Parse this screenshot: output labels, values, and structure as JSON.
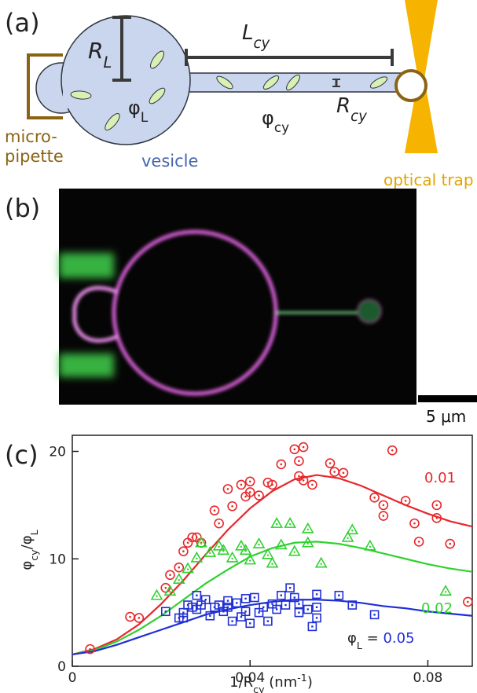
{
  "panel_a": {
    "label": "(a)",
    "r_l": [
      {
        "text": "R"
      },
      {
        "text": "L",
        "sub": true
      }
    ],
    "l_cy": [
      {
        "text": "L"
      },
      {
        "text": "cy",
        "sub": true
      }
    ],
    "phi_l": [
      {
        "text": "φ"
      },
      {
        "text": "L",
        "sub": true
      }
    ],
    "phi_cy": [
      {
        "text": "φ"
      },
      {
        "text": "cy",
        "sub": true
      }
    ],
    "r_cy": [
      {
        "text": "R"
      },
      {
        "text": "cy",
        "sub": true
      }
    ],
    "micropipette": [
      "micro-",
      "pipette"
    ],
    "vesicle": "vesicle",
    "optical_trap": "optical trap"
  },
  "panel_b": {
    "label": "(b)",
    "scale_bar": "5 μm"
  },
  "panel_c": {
    "label": "(c)"
  },
  "chart_data": {
    "type": "scatter",
    "xlabel": [
      {
        "text": "1/R"
      },
      {
        "text": "cy",
        "sub": true
      },
      {
        "text": " (nm"
      },
      {
        "text": "-1",
        "sup": true
      },
      {
        "text": ")"
      }
    ],
    "ylabel": [
      {
        "text": "φ"
      },
      {
        "text": "cy",
        "sub": true
      },
      {
        "text": "/φ"
      },
      {
        "text": "L",
        "sub": true
      }
    ],
    "xlim": [
      0,
      0.09
    ],
    "ylim": [
      0,
      21.5
    ],
    "xticks": [
      0,
      0.04,
      0.08
    ],
    "yticks": [
      0,
      10,
      20
    ],
    "label_prefix": [
      {
        "text": "φ"
      },
      {
        "text": "L",
        "sub": true
      },
      {
        "text": " = "
      }
    ],
    "series": [
      {
        "name": "0.01",
        "color": "#e8262a",
        "marker": "circle",
        "x": [
          0.004,
          0.013,
          0.015,
          0.021,
          0.022,
          0.024,
          0.025,
          0.026,
          0.027,
          0.028,
          0.029,
          0.032,
          0.033,
          0.035,
          0.036,
          0.038,
          0.039,
          0.04,
          0.04,
          0.042,
          0.044,
          0.045,
          0.047,
          0.05,
          0.051,
          0.052,
          0.052,
          0.051,
          0.054,
          0.058,
          0.059,
          0.061,
          0.068,
          0.07,
          0.07,
          0.072,
          0.075,
          0.077,
          0.078,
          0.082,
          0.082,
          0.085,
          0.089
        ],
        "values": [
          1.6,
          4.6,
          4.5,
          7.3,
          8.5,
          9.2,
          10.7,
          11.5,
          12.0,
          12.0,
          11.5,
          14.5,
          13.3,
          16.5,
          14.9,
          16.9,
          15.8,
          17.2,
          16.2,
          15.9,
          17.1,
          16.9,
          18.8,
          20.2,
          19.1,
          17.3,
          20.4,
          17.7,
          16.9,
          18.9,
          18.1,
          18.0,
          15.7,
          14.0,
          15.0,
          20.1,
          15.4,
          13.3,
          11.6,
          13.8,
          15.0,
          11.4,
          6.0
        ]
      },
      {
        "name": "0.02",
        "color": "#2fd12f",
        "marker": "triangle",
        "x": [
          0.019,
          0.022,
          0.024,
          0.026,
          0.028,
          0.029,
          0.031,
          0.033,
          0.034,
          0.036,
          0.038,
          0.039,
          0.04,
          0.042,
          0.044,
          0.045,
          0.046,
          0.047,
          0.049,
          0.05,
          0.053,
          0.053,
          0.056,
          0.062,
          0.063,
          0.067,
          0.084
        ],
        "values": [
          6.6,
          7.0,
          8.1,
          9.1,
          10.1,
          11.5,
          10.6,
          11.2,
          10.8,
          10.1,
          11.2,
          10.8,
          9.9,
          11.4,
          10.4,
          9.6,
          13.3,
          11.3,
          13.3,
          10.7,
          12.8,
          11.5,
          9.6,
          12.0,
          12.7,
          11.2,
          7.0
        ]
      },
      {
        "name": "0.05",
        "color": "#1f2fd6",
        "marker": "square",
        "x": [
          0.021,
          0.024,
          0.025,
          0.025,
          0.026,
          0.027,
          0.028,
          0.028,
          0.029,
          0.03,
          0.031,
          0.032,
          0.033,
          0.034,
          0.035,
          0.035,
          0.036,
          0.037,
          0.038,
          0.039,
          0.039,
          0.04,
          0.041,
          0.042,
          0.043,
          0.044,
          0.045,
          0.046,
          0.047,
          0.048,
          0.049,
          0.05,
          0.051,
          0.051,
          0.053,
          0.055,
          0.055,
          0.06,
          0.054,
          0.055,
          0.063,
          0.068
        ],
        "values": [
          5.1,
          4.5,
          5.0,
          4.5,
          5.7,
          5.5,
          6.6,
          5.3,
          5.7,
          6.2,
          4.7,
          5.5,
          5.7,
          5.1,
          6.1,
          5.5,
          4.2,
          5.9,
          4.6,
          6.3,
          5.1,
          4.0,
          6.4,
          5.0,
          5.5,
          4.2,
          5.8,
          5.3,
          6.6,
          5.7,
          7.3,
          6.4,
          5.0,
          5.8,
          5.3,
          5.5,
          6.7,
          6.6,
          3.7,
          4.5,
          5.7,
          4.8
        ]
      }
    ],
    "fits": [
      {
        "color": "#e8262a",
        "x": [
          0,
          0.005,
          0.01,
          0.015,
          0.02,
          0.025,
          0.03,
          0.035,
          0.04,
          0.045,
          0.05,
          0.055,
          0.06,
          0.065,
          0.07,
          0.075,
          0.08,
          0.085,
          0.09
        ],
        "values": [
          1.1,
          1.6,
          2.5,
          3.9,
          5.8,
          8.0,
          10.4,
          12.7,
          14.7,
          16.3,
          17.4,
          17.8,
          17.5,
          16.8,
          15.9,
          15.0,
          14.2,
          13.5,
          13.0
        ]
      },
      {
        "color": "#2fd12f",
        "x": [
          0,
          0.005,
          0.01,
          0.015,
          0.02,
          0.025,
          0.03,
          0.035,
          0.04,
          0.045,
          0.05,
          0.055,
          0.06,
          0.065,
          0.07,
          0.075,
          0.08,
          0.085,
          0.09
        ],
        "values": [
          1.1,
          1.5,
          2.3,
          3.4,
          4.7,
          6.2,
          7.7,
          9.0,
          10.2,
          11.0,
          11.5,
          11.6,
          11.4,
          11.0,
          10.5,
          10.0,
          9.5,
          9.1,
          8.8
        ]
      },
      {
        "color": "#1f2fd6",
        "x": [
          0,
          0.005,
          0.01,
          0.015,
          0.02,
          0.025,
          0.03,
          0.035,
          0.04,
          0.045,
          0.05,
          0.055,
          0.06,
          0.065,
          0.07,
          0.075,
          0.08,
          0.085,
          0.09
        ],
        "values": [
          1.1,
          1.4,
          2.0,
          2.7,
          3.4,
          4.1,
          4.8,
          5.3,
          5.7,
          6.0,
          6.2,
          6.2,
          6.1,
          5.9,
          5.6,
          5.4,
          5.1,
          4.9,
          4.7
        ]
      }
    ]
  }
}
